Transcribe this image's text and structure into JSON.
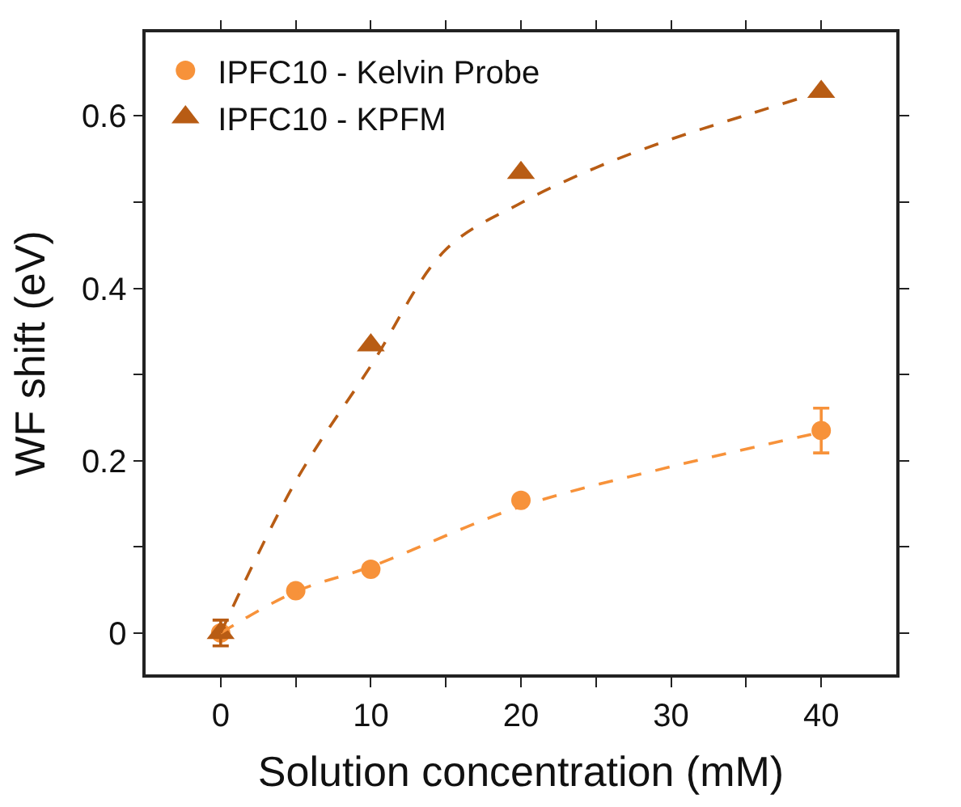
{
  "chart_data": {
    "type": "scatter",
    "xlabel": "Solution concentration (mM)",
    "ylabel": "WF shift (eV)",
    "xlim": [
      -5,
      45
    ],
    "ylim": [
      -0.048,
      0.697
    ],
    "xticks": [
      0,
      {
        "value": 5,
        "label": null
      },
      10,
      {
        "value": 15,
        "label": null
      },
      20,
      {
        "value": 25,
        "label": null
      },
      30,
      {
        "value": 35,
        "label": null
      },
      40
    ],
    "yticks": [
      0,
      {
        "value": 0.1,
        "label": null
      },
      0.2,
      {
        "value": 0.3,
        "label": null
      },
      0.4,
      {
        "value": 0.5,
        "label": null
      },
      0.6
    ],
    "legend": "top left",
    "series": [
      {
        "name": "IPFC10 - Kelvin Probe",
        "color": "#f7923a",
        "marker": "circle",
        "x": [
          0,
          5,
          10,
          20,
          40
        ],
        "values": [
          0,
          0.049,
          0.074,
          0.154,
          0.235
        ],
        "errors": [
          null,
          null,
          null,
          null,
          0.026
        ]
      },
      {
        "name": "IPFC10 - KPFM",
        "color": "#b85c14",
        "marker": "triangle",
        "x": [
          0,
          10,
          20,
          40
        ],
        "values": [
          0,
          0.334,
          0.534,
          0.628
        ],
        "errors": [
          0.015,
          null,
          null,
          null
        ]
      },
      {
        "type": "line",
        "color": "#f7923a",
        "line_style": "dashed",
        "marker": "none",
        "x": [
          0,
          5,
          10,
          20,
          30,
          40
        ],
        "values": [
          0,
          0.048,
          0.077,
          0.147,
          0.193,
          0.233
        ]
      },
      {
        "type": "line",
        "color": "#b85c14",
        "line_style": "dashed",
        "marker": "none",
        "x": [
          0,
          5,
          10,
          15,
          20,
          25,
          30,
          35,
          40
        ],
        "values": [
          0,
          0.176,
          0.31,
          0.445,
          0.499,
          0.54,
          0.573,
          0.601,
          0.628
        ]
      }
    ]
  }
}
